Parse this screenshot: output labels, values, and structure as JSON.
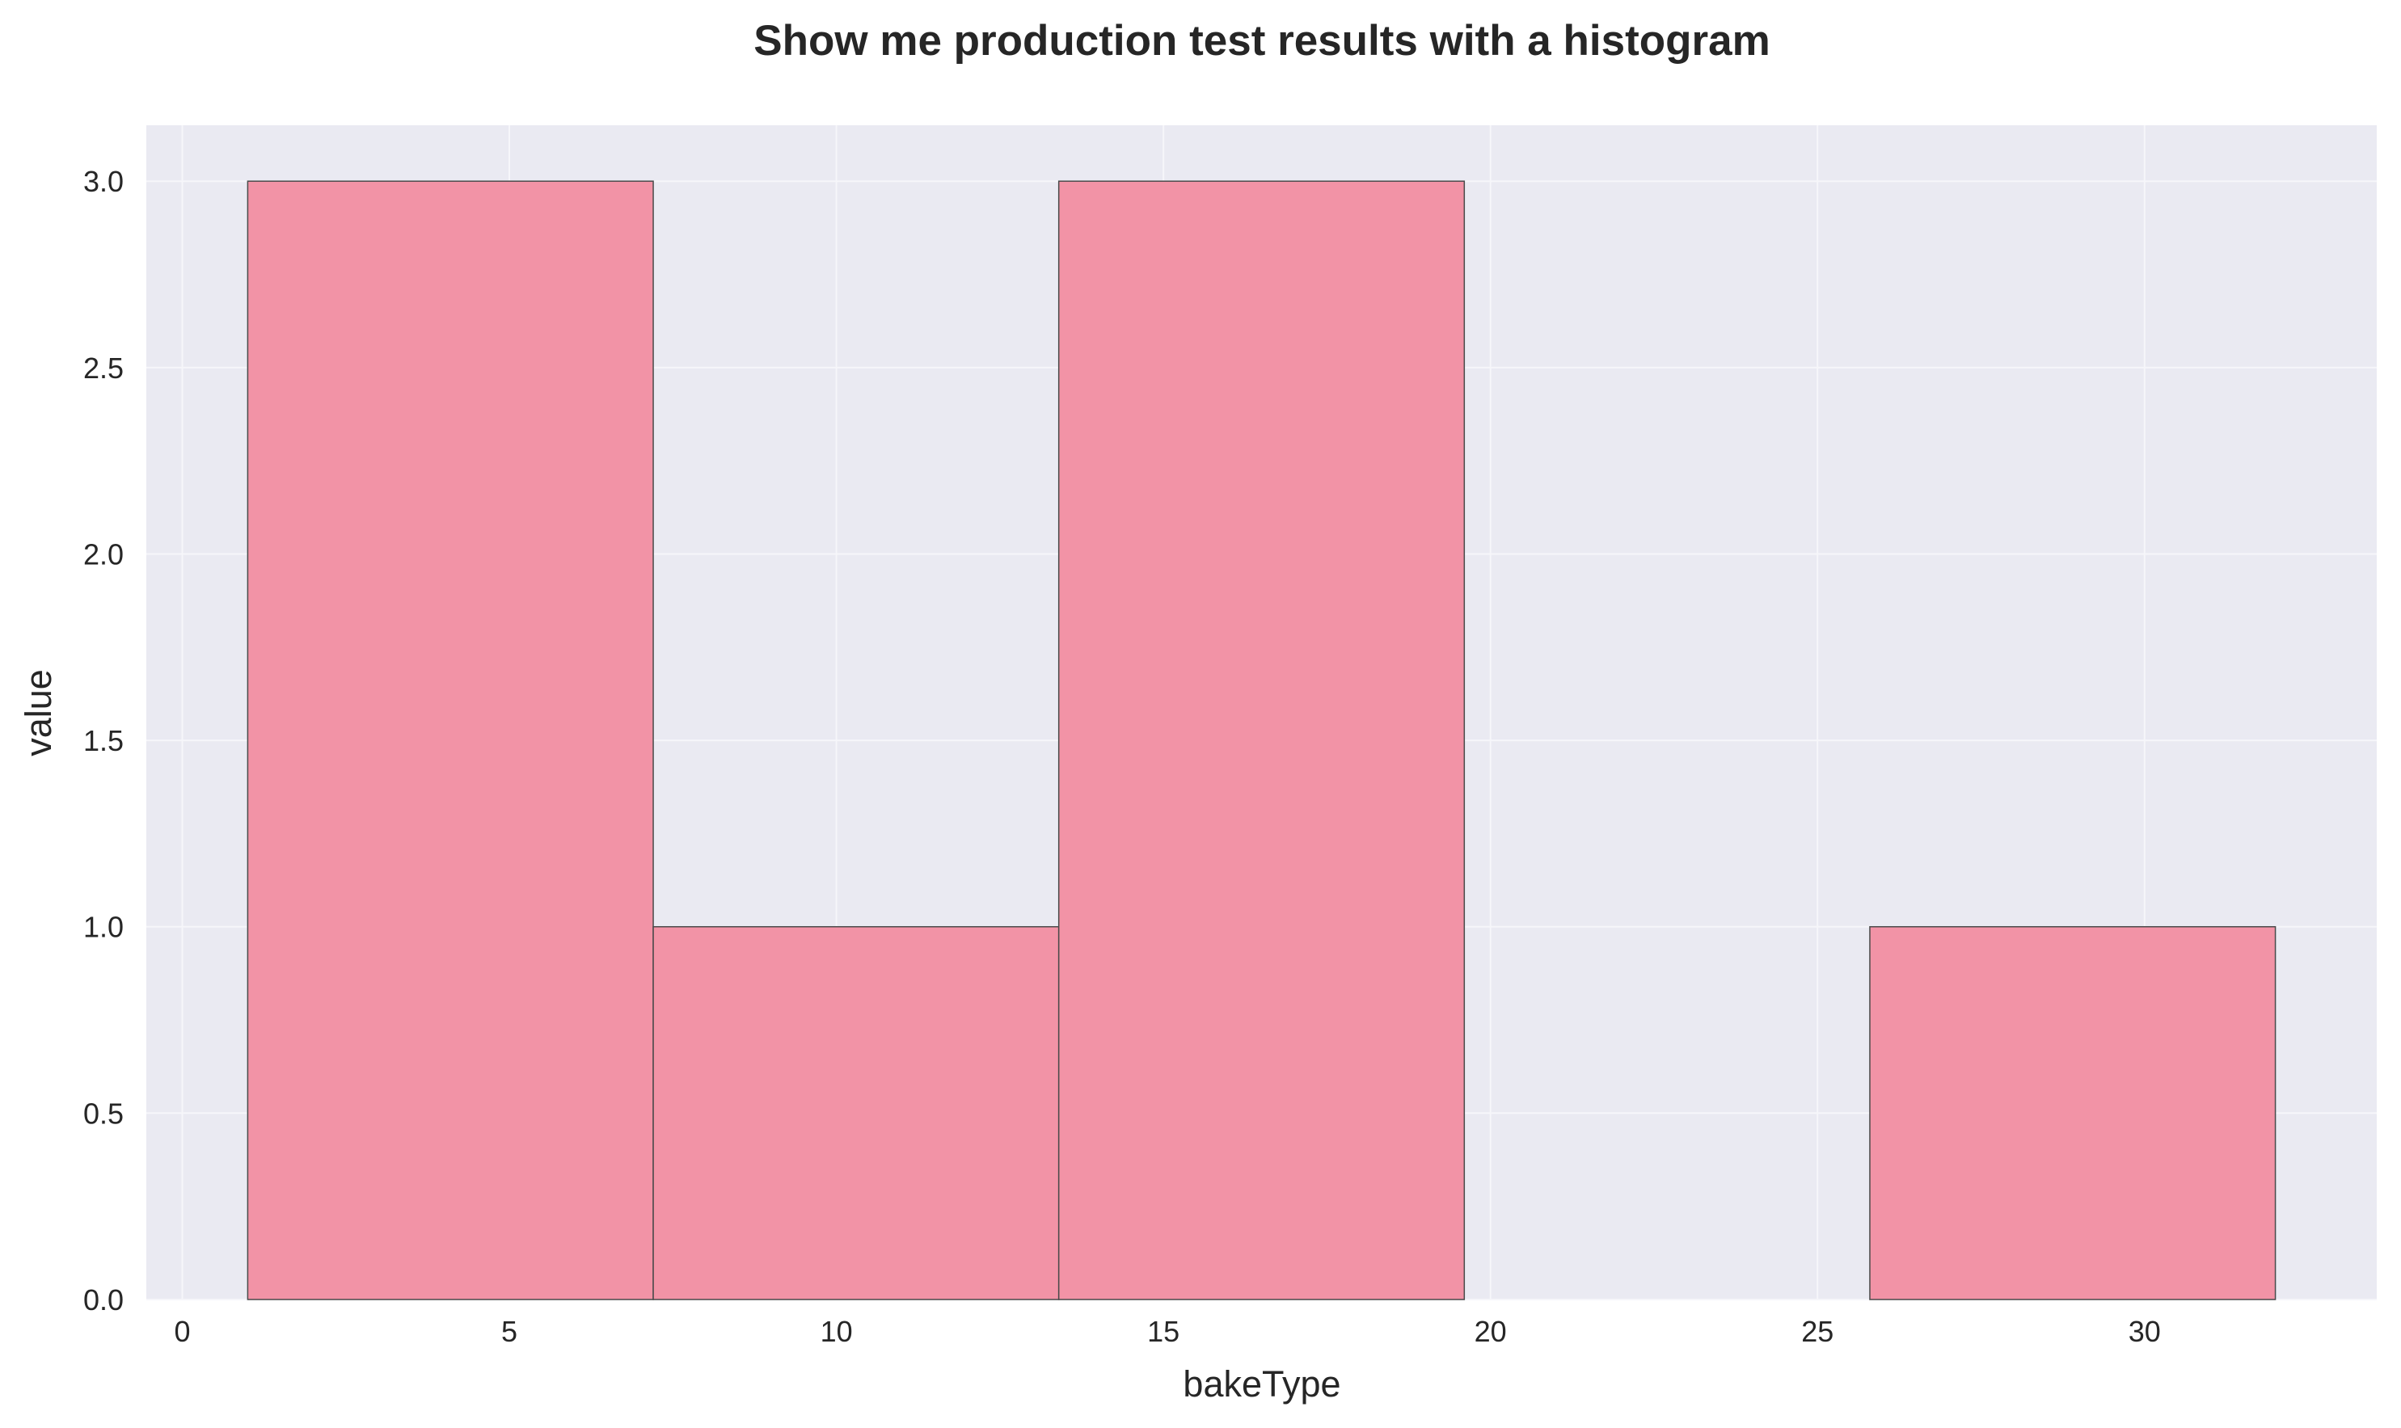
{
  "chart_data": {
    "type": "bar",
    "title": "Show me production test results with a histogram",
    "xlabel": "bakeType",
    "ylabel": "value",
    "bins": [
      {
        "start": 1.0,
        "end": 7.2,
        "value": 3
      },
      {
        "start": 7.2,
        "end": 13.4,
        "value": 1
      },
      {
        "start": 13.4,
        "end": 19.6,
        "value": 3
      },
      {
        "start": 19.6,
        "end": 25.8,
        "value": 0
      },
      {
        "start": 25.8,
        "end": 32.0,
        "value": 1
      }
    ],
    "xlim": [
      -0.55,
      33.55
    ],
    "ylim": [
      0,
      3.15
    ],
    "xticks": [
      0,
      5,
      10,
      15,
      20,
      25,
      30
    ],
    "xtick_labels": [
      "0",
      "5",
      "10",
      "15",
      "20",
      "25",
      "30"
    ],
    "yticks": [
      0,
      0.5,
      1.0,
      1.5,
      2.0,
      2.5,
      3.0
    ],
    "ytick_labels": [
      "0.0",
      "0.5",
      "1.0",
      "1.5",
      "2.0",
      "2.5",
      "3.0"
    ],
    "grid": true,
    "colors": {
      "bar_fill": "#f293a6",
      "bar_edge": "#4a4a4a",
      "plot_background": "#eaeaf2",
      "grid": "#f6f6fa",
      "text": "#262626"
    }
  }
}
